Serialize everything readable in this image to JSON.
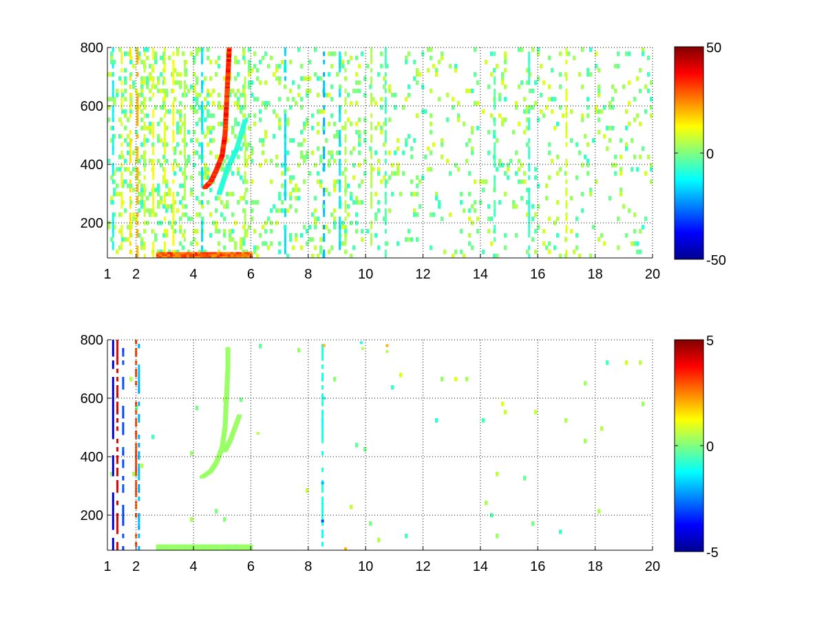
{
  "colormap": {
    "name": "jet",
    "stops": [
      "#00008f",
      "#0000ff",
      "#0080ff",
      "#00ffff",
      "#80ff80",
      "#ffff00",
      "#ff8000",
      "#ff0000",
      "#800000"
    ]
  },
  "chart_data": [
    {
      "type": "heatmap",
      "title": "",
      "xlabel": "",
      "ylabel": "",
      "xlim": [
        1,
        20
      ],
      "ylim": [
        80,
        800
      ],
      "grid": true,
      "colorbar": {
        "clim": [
          -50,
          50
        ],
        "ticks": [
          "50",
          "0",
          "-50"
        ],
        "placement": "right"
      },
      "xticks": [
        "1",
        "2",
        "4",
        "6",
        "8",
        "10",
        "12",
        "14",
        "16",
        "18",
        "20"
      ],
      "yticks": [
        "200",
        "400",
        "600",
        "800"
      ],
      "features": [
        {
          "name": "curved track",
          "points": [
            [
              4.4,
              320
            ],
            [
              4.6,
              340
            ],
            [
              4.8,
              380
            ],
            [
              5.0,
              430
            ],
            [
              5.1,
              500
            ],
            [
              5.15,
              600
            ],
            [
              5.2,
              700
            ],
            [
              5.25,
              800
            ]
          ],
          "value": 40
        },
        {
          "name": "branch",
          "points": [
            [
              4.9,
              300
            ],
            [
              5.0,
              330
            ],
            [
              5.2,
              390
            ],
            [
              5.5,
              450
            ],
            [
              5.8,
              550
            ]
          ],
          "value": -10
        },
        {
          "name": "low band",
          "x": [
            2.7,
            6.0
          ],
          "y": [
            80,
            100
          ],
          "value": 35
        }
      ],
      "vertical_streaks": [
        {
          "x": 1.2,
          "value": -12
        },
        {
          "x": 1.5,
          "value": 10
        },
        {
          "x": 1.8,
          "value": 15
        },
        {
          "x": 2.05,
          "value": 20
        },
        {
          "x": 2.3,
          "value": 8
        },
        {
          "x": 2.6,
          "value": 12
        },
        {
          "x": 3.0,
          "value": 10
        },
        {
          "x": 3.3,
          "value": 12
        },
        {
          "x": 3.7,
          "value": 5
        },
        {
          "x": 4.3,
          "value": -15
        },
        {
          "x": 5.8,
          "value": 5
        },
        {
          "x": 7.2,
          "value": -15
        },
        {
          "x": 8.55,
          "value": -20
        },
        {
          "x": 9.1,
          "value": -15
        },
        {
          "x": 9.3,
          "value": 5
        },
        {
          "x": 10.2,
          "value": 5
        },
        {
          "x": 10.7,
          "value": -5
        },
        {
          "x": 14.5,
          "value": -5
        },
        {
          "x": 15.7,
          "value": -8
        },
        {
          "x": 17.0,
          "value": 8
        }
      ],
      "scatter_density": 0.11
    },
    {
      "type": "heatmap",
      "title": "",
      "xlabel": "",
      "ylabel": "",
      "xlim": [
        1,
        20
      ],
      "ylim": [
        80,
        800
      ],
      "grid": true,
      "colorbar": {
        "clim": [
          -5,
          5
        ],
        "ticks": [
          "5",
          "0",
          "-5"
        ],
        "placement": "right"
      },
      "xticks": [
        "1",
        "2",
        "4",
        "6",
        "8",
        "10",
        "12",
        "14",
        "16",
        "18",
        "20"
      ],
      "yticks": [
        "200",
        "400",
        "600",
        "800"
      ],
      "features": [
        {
          "name": "curved track",
          "points": [
            [
              4.3,
              330
            ],
            [
              4.6,
              350
            ],
            [
              4.8,
              380
            ],
            [
              5.0,
              430
            ],
            [
              5.1,
              500
            ],
            [
              5.15,
              600
            ],
            [
              5.2,
              700
            ],
            [
              5.2,
              770
            ]
          ],
          "value": 0.3
        },
        {
          "name": "branch",
          "points": [
            [
              5.1,
              420
            ],
            [
              5.3,
              460
            ],
            [
              5.6,
              540
            ]
          ],
          "value": 0.3
        },
        {
          "name": "low band",
          "x": [
            2.7,
            6.0
          ],
          "y": [
            80,
            100
          ],
          "value": 0.3
        }
      ],
      "vertical_streaks": [
        {
          "x": 1.2,
          "value": -4
        },
        {
          "x": 1.35,
          "value": 4
        },
        {
          "x": 1.55,
          "value": -3
        },
        {
          "x": 2.0,
          "value": 3
        },
        {
          "x": 2.1,
          "value": -2
        },
        {
          "x": 8.5,
          "value": -1
        }
      ],
      "isolated_points": [
        {
          "x": 8.55,
          "y": 780,
          "value": 2
        },
        {
          "x": 8.55,
          "y": 600,
          "value": -1
        },
        {
          "x": 8.5,
          "y": 310,
          "value": -2
        },
        {
          "x": 8.5,
          "y": 180,
          "value": -3
        },
        {
          "x": 9.3,
          "y": 85,
          "value": 2
        },
        {
          "x": 9.85,
          "y": 790,
          "value": -1
        },
        {
          "x": 9.9,
          "y": 770,
          "value": 0.5
        },
        {
          "x": 10.75,
          "y": 780,
          "value": 2
        },
        {
          "x": 10.75,
          "y": 760,
          "value": 0.5
        },
        {
          "x": 6.25,
          "y": 480,
          "value": 0.5
        }
      ],
      "scatter_density": 0.004
    }
  ]
}
